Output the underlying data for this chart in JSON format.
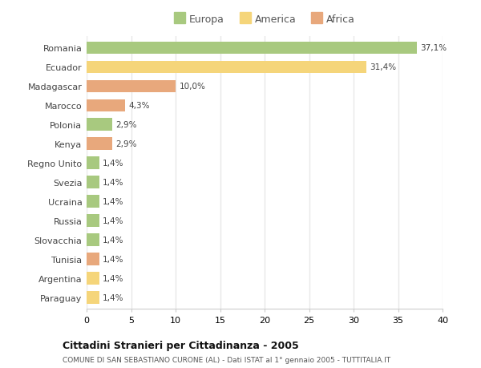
{
  "categories": [
    "Romania",
    "Ecuador",
    "Madagascar",
    "Marocco",
    "Polonia",
    "Kenya",
    "Regno Unito",
    "Svezia",
    "Ucraina",
    "Russia",
    "Slovacchia",
    "Tunisia",
    "Argentina",
    "Paraguay"
  ],
  "values": [
    37.1,
    31.4,
    10.0,
    4.3,
    2.9,
    2.9,
    1.4,
    1.4,
    1.4,
    1.4,
    1.4,
    1.4,
    1.4,
    1.4
  ],
  "labels": [
    "37,1%",
    "31,4%",
    "10,0%",
    "4,3%",
    "2,9%",
    "2,9%",
    "1,4%",
    "1,4%",
    "1,4%",
    "1,4%",
    "1,4%",
    "1,4%",
    "1,4%",
    "1,4%"
  ],
  "continent": [
    "Europa",
    "America",
    "Africa",
    "Africa",
    "Europa",
    "Africa",
    "Europa",
    "Europa",
    "Europa",
    "Europa",
    "Europa",
    "Africa",
    "America",
    "America"
  ],
  "colors": {
    "Europa": "#a8c97f",
    "America": "#f5d57a",
    "Africa": "#e8a87c"
  },
  "xlim": [
    0,
    40
  ],
  "xticks": [
    0,
    5,
    10,
    15,
    20,
    25,
    30,
    35,
    40
  ],
  "title": "Cittadini Stranieri per Cittadinanza - 2005",
  "subtitle": "COMUNE DI SAN SEBASTIANO CURONE (AL) - Dati ISTAT al 1° gennaio 2005 - TUTTITALIA.IT",
  "background_color": "#ffffff",
  "plot_bg_color": "#ffffff",
  "grid_color": "#e8e8e8",
  "bar_height": 0.65
}
